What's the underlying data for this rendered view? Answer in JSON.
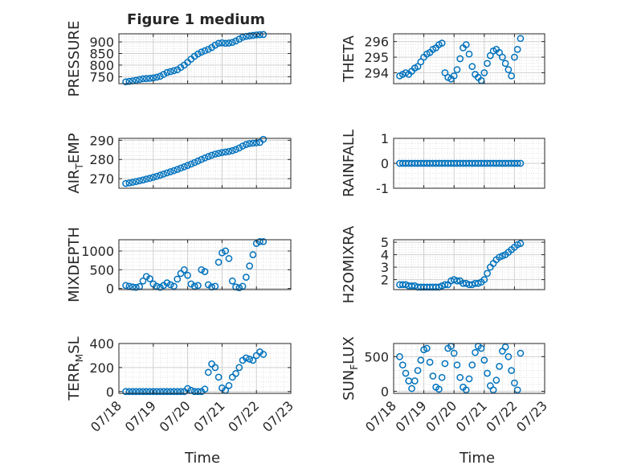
{
  "figure": {
    "title": "Figure 1 medium",
    "xlabel": "Time"
  },
  "x_ticks": [
    "07/18",
    "07/19",
    "07/20",
    "07/21",
    "07/22",
    "07/23"
  ],
  "colors": {
    "marker": "#0072BD",
    "grid": "#dcdcdc",
    "axis": "#262626"
  },
  "chart_data": [
    {
      "type": "scatter",
      "ylabel": "PRESSURE",
      "ylabel_sub": "",
      "ylabel_rest": "",
      "ylim": [
        720,
        935
      ],
      "yticks": [
        750,
        800,
        850,
        900
      ],
      "x": [
        0.2,
        0.3,
        0.4,
        0.5,
        0.6,
        0.7,
        0.8,
        0.9,
        1.0,
        1.1,
        1.2,
        1.3,
        1.4,
        1.5,
        1.6,
        1.7,
        1.8,
        1.9,
        2.0,
        2.1,
        2.2,
        2.3,
        2.4,
        2.5,
        2.6,
        2.7,
        2.8,
        2.9,
        3.0,
        3.1,
        3.2,
        3.3,
        3.4,
        3.5,
        3.6,
        3.7,
        3.8,
        3.9,
        4.0,
        4.1,
        4.2
      ],
      "y": [
        728,
        730,
        732,
        735,
        738,
        741,
        742,
        743,
        745,
        748,
        752,
        760,
        768,
        772,
        776,
        780,
        790,
        800,
        812,
        826,
        838,
        848,
        856,
        862,
        868,
        876,
        886,
        894,
        896,
        894,
        895,
        898,
        904,
        912,
        920,
        924,
        926,
        928,
        930,
        931,
        932
      ]
    },
    {
      "type": "scatter",
      "ylabel": "THETA",
      "ylabel_sub": "",
      "ylabel_rest": "",
      "ylim": [
        293.3,
        296.5
      ],
      "yticks": [
        294,
        295,
        296
      ],
      "x": [
        0.2,
        0.3,
        0.4,
        0.5,
        0.6,
        0.7,
        0.8,
        0.9,
        1.0,
        1.1,
        1.2,
        1.3,
        1.4,
        1.5,
        1.6,
        1.7,
        1.8,
        1.9,
        2.0,
        2.1,
        2.2,
        2.3,
        2.4,
        2.5,
        2.6,
        2.7,
        2.8,
        2.9,
        3.0,
        3.1,
        3.2,
        3.3,
        3.4,
        3.5,
        3.6,
        3.7,
        3.8,
        3.9,
        4.0,
        4.1,
        4.2
      ],
      "y": [
        293.8,
        293.9,
        294.0,
        293.9,
        294.1,
        294.3,
        294.4,
        294.7,
        295.0,
        295.2,
        295.3,
        295.5,
        295.6,
        295.8,
        295.9,
        294.0,
        293.7,
        293.6,
        293.8,
        294.2,
        294.9,
        295.6,
        295.8,
        295.2,
        294.4,
        293.9,
        293.7,
        293.5,
        294.0,
        294.6,
        295.1,
        295.4,
        295.5,
        295.3,
        295.0,
        294.6,
        294.2,
        293.8,
        295.0,
        295.5,
        296.2
      ]
    },
    {
      "type": "scatter",
      "ylabel": "AIR",
      "ylabel_sub": "T",
      "ylabel_rest": "EMP",
      "ylim": [
        265,
        291
      ],
      "yticks": [
        270,
        280,
        290
      ],
      "x": [
        0.2,
        0.3,
        0.4,
        0.5,
        0.6,
        0.7,
        0.8,
        0.9,
        1.0,
        1.1,
        1.2,
        1.3,
        1.4,
        1.5,
        1.6,
        1.7,
        1.8,
        1.9,
        2.0,
        2.1,
        2.2,
        2.3,
        2.4,
        2.5,
        2.6,
        2.7,
        2.8,
        2.9,
        3.0,
        3.1,
        3.2,
        3.3,
        3.4,
        3.5,
        3.6,
        3.7,
        3.8,
        3.9,
        4.0,
        4.1,
        4.2
      ],
      "y": [
        267.5,
        267.8,
        268.1,
        268.5,
        268.9,
        269.3,
        269.8,
        270.2,
        270.7,
        271.2,
        271.8,
        272.4,
        273.0,
        273.6,
        274.2,
        274.8,
        275.5,
        276.2,
        276.9,
        277.6,
        278.4,
        279.2,
        280.0,
        280.8,
        281.5,
        282.2,
        282.8,
        283.2,
        283.6,
        283.9,
        284.2,
        284.6,
        285.2,
        286.0,
        287.0,
        287.8,
        288.3,
        288.5,
        288.7,
        288.9,
        290.5
      ]
    },
    {
      "type": "scatter",
      "ylabel": "RAINFALL",
      "ylabel_sub": "",
      "ylabel_rest": "",
      "ylim": [
        -1,
        1
      ],
      "yticks": [
        -1,
        0,
        1
      ],
      "x": [
        0.2,
        0.3,
        0.4,
        0.5,
        0.6,
        0.7,
        0.8,
        0.9,
        1.0,
        1.1,
        1.2,
        1.3,
        1.4,
        1.5,
        1.6,
        1.7,
        1.8,
        1.9,
        2.0,
        2.1,
        2.2,
        2.3,
        2.4,
        2.5,
        2.6,
        2.7,
        2.8,
        2.9,
        3.0,
        3.1,
        3.2,
        3.3,
        3.4,
        3.5,
        3.6,
        3.7,
        3.8,
        3.9,
        4.0,
        4.1,
        4.2
      ],
      "y": [
        0,
        0,
        0,
        0,
        0,
        0,
        0,
        0,
        0,
        0,
        0,
        0,
        0,
        0,
        0,
        0,
        0,
        0,
        0,
        0,
        0,
        0,
        0,
        0,
        0,
        0,
        0,
        0,
        0,
        0,
        0,
        0,
        0,
        0,
        0,
        0,
        0,
        0,
        0,
        0,
        0
      ]
    },
    {
      "type": "scatter",
      "ylabel": "MIXDEPTH",
      "ylabel_sub": "",
      "ylabel_rest": "",
      "ylim": [
        -30,
        1300
      ],
      "yticks": [
        0,
        500,
        1000
      ],
      "x": [
        0.2,
        0.3,
        0.4,
        0.5,
        0.6,
        0.7,
        0.8,
        0.9,
        1.0,
        1.1,
        1.2,
        1.3,
        1.4,
        1.5,
        1.6,
        1.7,
        1.8,
        1.9,
        2.0,
        2.1,
        2.2,
        2.3,
        2.4,
        2.5,
        2.6,
        2.7,
        2.8,
        2.9,
        3.0,
        3.1,
        3.2,
        3.3,
        3.4,
        3.5,
        3.6,
        3.7,
        3.8,
        3.9,
        4.0,
        4.1,
        4.2
      ],
      "y": [
        80,
        60,
        40,
        30,
        50,
        200,
        320,
        260,
        120,
        60,
        30,
        80,
        150,
        100,
        60,
        250,
        400,
        500,
        350,
        120,
        60,
        80,
        500,
        450,
        100,
        40,
        60,
        700,
        950,
        1000,
        800,
        200,
        40,
        20,
        60,
        300,
        600,
        900,
        1200,
        1250,
        1250
      ]
    },
    {
      "type": "scatter",
      "ylabel": "H2OMIXRA",
      "ylabel_sub": "",
      "ylabel_rest": "",
      "ylim": [
        1.2,
        5.2
      ],
      "yticks": [
        2,
        3,
        4,
        5
      ],
      "x": [
        0.2,
        0.3,
        0.4,
        0.5,
        0.6,
        0.7,
        0.8,
        0.9,
        1.0,
        1.1,
        1.2,
        1.3,
        1.4,
        1.5,
        1.6,
        1.7,
        1.8,
        1.9,
        2.0,
        2.1,
        2.2,
        2.3,
        2.4,
        2.5,
        2.6,
        2.7,
        2.8,
        2.9,
        3.0,
        3.1,
        3.2,
        3.3,
        3.4,
        3.5,
        3.6,
        3.7,
        3.8,
        3.9,
        4.0,
        4.1,
        4.2
      ],
      "y": [
        1.6,
        1.6,
        1.6,
        1.5,
        1.5,
        1.5,
        1.4,
        1.4,
        1.4,
        1.4,
        1.4,
        1.4,
        1.4,
        1.4,
        1.5,
        1.6,
        1.6,
        1.9,
        2.0,
        1.9,
        1.9,
        1.7,
        1.7,
        1.6,
        1.6,
        1.7,
        1.7,
        1.8,
        2.0,
        2.5,
        3.0,
        3.3,
        3.6,
        3.8,
        3.9,
        4.0,
        4.2,
        4.4,
        4.6,
        4.8,
        4.9
      ]
    },
    {
      "type": "scatter",
      "ylabel": "TERR",
      "ylabel_sub": "M",
      "ylabel_rest": "SL",
      "ylim": [
        -15,
        400
      ],
      "yticks": [
        0,
        200,
        400
      ],
      "x": [
        0.2,
        0.3,
        0.4,
        0.5,
        0.6,
        0.7,
        0.8,
        0.9,
        1.0,
        1.1,
        1.2,
        1.3,
        1.4,
        1.5,
        1.6,
        1.7,
        1.8,
        1.9,
        2.0,
        2.1,
        2.2,
        2.3,
        2.4,
        2.5,
        2.6,
        2.7,
        2.8,
        2.9,
        3.0,
        3.1,
        3.2,
        3.3,
        3.4,
        3.5,
        3.6,
        3.7,
        3.8,
        3.9,
        4.0,
        4.1,
        4.2
      ],
      "y": [
        0,
        0,
        0,
        0,
        0,
        0,
        0,
        0,
        0,
        0,
        0,
        0,
        0,
        0,
        0,
        0,
        0,
        0,
        25,
        10,
        0,
        0,
        0,
        20,
        160,
        230,
        200,
        120,
        30,
        10,
        50,
        120,
        150,
        200,
        260,
        280,
        270,
        260,
        300,
        330,
        310
      ]
    },
    {
      "type": "scatter",
      "ylabel": "SUN",
      "ylabel_sub": "F",
      "ylabel_rest": "LUX",
      "ylim": [
        -30,
        690
      ],
      "yticks": [
        0,
        500
      ],
      "x": [
        0.2,
        0.3,
        0.4,
        0.5,
        0.6,
        0.7,
        0.8,
        0.9,
        1.0,
        1.1,
        1.2,
        1.3,
        1.4,
        1.5,
        1.6,
        1.7,
        1.8,
        1.9,
        2.0,
        2.1,
        2.2,
        2.3,
        2.4,
        2.5,
        2.6,
        2.7,
        2.8,
        2.9,
        3.0,
        3.1,
        3.2,
        3.3,
        3.4,
        3.5,
        3.6,
        3.7,
        3.8,
        3.9,
        4.0,
        4.1,
        4.2
      ],
      "y": [
        500,
        380,
        260,
        150,
        40,
        150,
        300,
        450,
        600,
        620,
        420,
        220,
        60,
        30,
        200,
        400,
        620,
        650,
        550,
        380,
        200,
        60,
        20,
        180,
        380,
        560,
        650,
        620,
        450,
        260,
        80,
        20,
        160,
        360,
        580,
        640,
        500,
        300,
        120,
        20,
        550
      ]
    }
  ]
}
